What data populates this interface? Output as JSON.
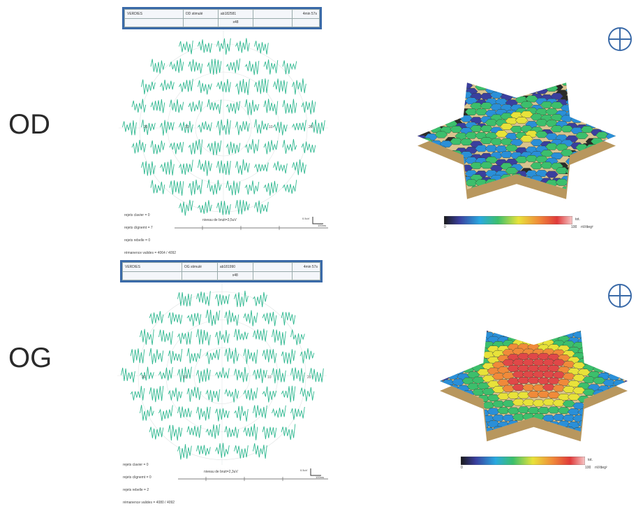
{
  "panels": [
    {
      "id": "od",
      "eye": "OD",
      "header": {
        "name": "VERDIES",
        "stimulus": "OD stimulé",
        "id_code": "ab182581",
        "duration": "4min 57s",
        "hex_count": "x48"
      },
      "meta_lines": [
        "rejets clavier = 0",
        "rejets clignemt = 7",
        "rejets rebelle = 0",
        "rémanence valides = 4064 / 4092"
      ],
      "noise_level": "niveau de bruit=3,5uV",
      "scale_v": "0.5uV",
      "scale_t": "100ms",
      "ecc_labels": [
        "20",
        "10",
        "10",
        "20"
      ],
      "colorbar": {
        "max_label": "tot.",
        "min_label": "0",
        "max_value": "100",
        "unit": "nV/deg²"
      },
      "topography": "depressed",
      "colors": {
        "trace": "#2fb890",
        "frame": "#3a6aa8"
      }
    },
    {
      "id": "og",
      "eye": "OG",
      "header": {
        "name": "VERDIES",
        "stimulus": "OG stimulé",
        "id_code": "ab181990",
        "duration": "4min 57s",
        "hex_count": "x48"
      },
      "meta_lines": [
        "rejets clavier = 0",
        "rejets clignemt = 0",
        "rejets rebelle = 2",
        "rémanence valides = 4080 / 4092"
      ],
      "noise_level": "niveau de bruit=2,3uV",
      "scale_v": "0.5uV",
      "scale_t": "100ms",
      "ecc_labels": [
        "20",
        "10",
        "10",
        "20"
      ],
      "colorbar": {
        "max_label": "tot.",
        "min_label": "0",
        "max_value": "100",
        "unit": "nV/deg²"
      },
      "topography": "peaked",
      "colors": {
        "trace": "#2fb890",
        "frame": "#3a6aa8"
      }
    }
  ]
}
